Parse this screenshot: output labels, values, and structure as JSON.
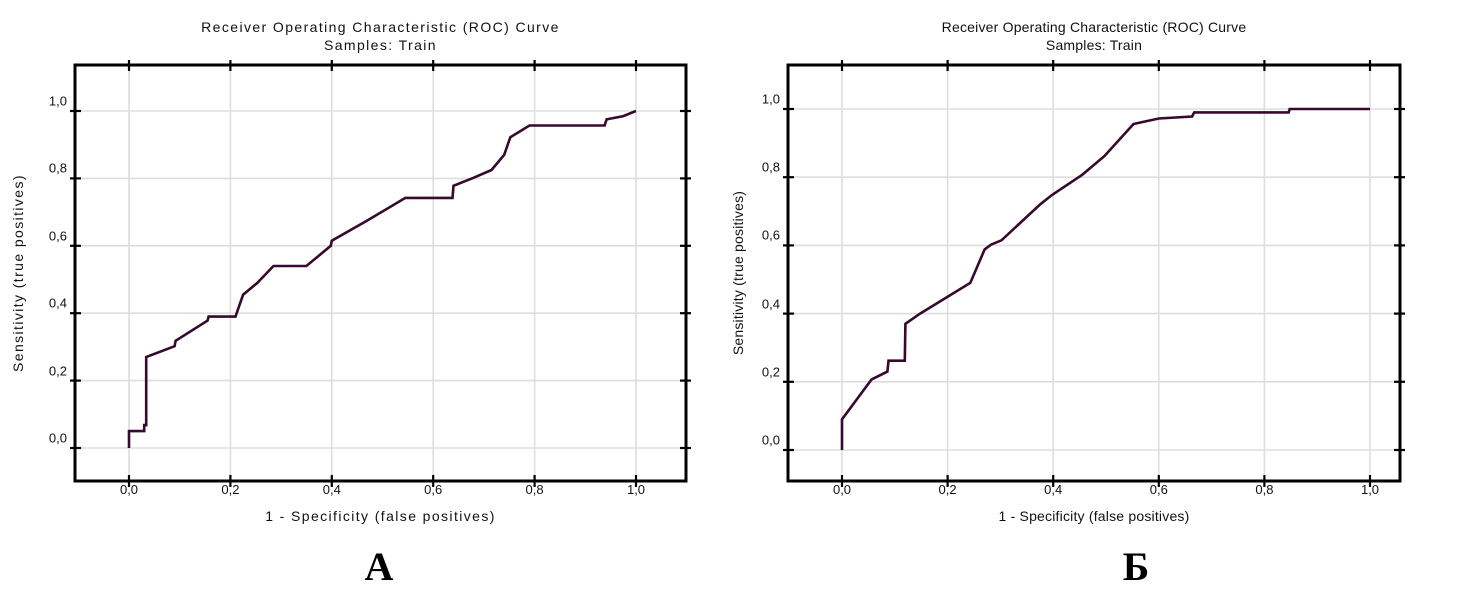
{
  "page": {
    "background": "#ffffff"
  },
  "colors": {
    "curve": "#38092d",
    "grid": "#dedede",
    "frame": "#000000",
    "tick": "#000000",
    "text": "#111111"
  },
  "chart_data": [
    {
      "id": "roc-train-a",
      "type": "line",
      "title": "Receiver Operating Characteristic (ROC) Curve",
      "subtitle": "Samples: Train",
      "xlabel": "1 - Specificity (false positives)",
      "ylabel": "Sensitivity (true positives)",
      "caption": "А",
      "xlim": [
        0,
        1
      ],
      "ylim": [
        0,
        1
      ],
      "grid": true,
      "legend": "none",
      "tick_values": [
        0,
        0.2,
        0.4,
        0.6,
        0.8,
        1.0
      ],
      "xtick_labels": [
        "0,0",
        "0,2",
        "0,4",
        "0,6",
        "0,8",
        "1,0"
      ],
      "ytick_labels": [
        "0,0",
        "0,2",
        "0,4",
        "0,6",
        "0,8",
        "1,0"
      ],
      "series": [
        {
          "name": "ROC curve (Train)",
          "points": [
            [
              0.0,
              0.0
            ],
            [
              0.0,
              0.05
            ],
            [
              0.03,
              0.05
            ],
            [
              0.03,
              0.068
            ],
            [
              0.034,
              0.068
            ],
            [
              0.034,
              0.27
            ],
            [
              0.09,
              0.302
            ],
            [
              0.092,
              0.318
            ],
            [
              0.155,
              0.378
            ],
            [
              0.157,
              0.39
            ],
            [
              0.21,
              0.39
            ],
            [
              0.225,
              0.455
            ],
            [
              0.253,
              0.49
            ],
            [
              0.285,
              0.54
            ],
            [
              0.35,
              0.54
            ],
            [
              0.398,
              0.6
            ],
            [
              0.4,
              0.615
            ],
            [
              0.47,
              0.675
            ],
            [
              0.545,
              0.742
            ],
            [
              0.638,
              0.742
            ],
            [
              0.64,
              0.778
            ],
            [
              0.68,
              0.802
            ],
            [
              0.715,
              0.825
            ],
            [
              0.74,
              0.87
            ],
            [
              0.752,
              0.922
            ],
            [
              0.79,
              0.957
            ],
            [
              0.938,
              0.957
            ],
            [
              0.942,
              0.975
            ],
            [
              0.975,
              0.985
            ],
            [
              1.0,
              1.0
            ]
          ]
        }
      ]
    },
    {
      "id": "roc-train-b",
      "type": "line",
      "title": "Receiver Operating Characteristic (ROC) Curve",
      "subtitle": "Samples: Train",
      "xlabel": "1 - Specificity (false positives)",
      "ylabel": "Sensitivity (true positives)",
      "caption": "Б",
      "xlim": [
        0,
        1
      ],
      "ylim": [
        0,
        1
      ],
      "grid": true,
      "legend": "none",
      "tick_values": [
        0,
        0.2,
        0.4,
        0.6,
        0.8,
        1.0
      ],
      "xtick_labels": [
        "0,0",
        "0,2",
        "0,4",
        "0,6",
        "0,8",
        "1,0"
      ],
      "ytick_labels": [
        "0,0",
        "0,2",
        "0,4",
        "0,6",
        "0,8",
        "1,0"
      ],
      "series": [
        {
          "name": "ROC curve (Train)",
          "points": [
            [
              0.0,
              0.0
            ],
            [
              0.0,
              0.09
            ],
            [
              0.056,
              0.207
            ],
            [
              0.086,
              0.23
            ],
            [
              0.088,
              0.262
            ],
            [
              0.119,
              0.262
            ],
            [
              0.12,
              0.37
            ],
            [
              0.148,
              0.4
            ],
            [
              0.243,
              0.49
            ],
            [
              0.27,
              0.588
            ],
            [
              0.282,
              0.602
            ],
            [
              0.302,
              0.615
            ],
            [
              0.375,
              0.72
            ],
            [
              0.398,
              0.748
            ],
            [
              0.455,
              0.807
            ],
            [
              0.497,
              0.862
            ],
            [
              0.545,
              0.944
            ],
            [
              0.552,
              0.956
            ],
            [
              0.6,
              0.972
            ],
            [
              0.663,
              0.978
            ],
            [
              0.667,
              0.99
            ],
            [
              0.846,
              0.99
            ],
            [
              0.848,
              1.0
            ],
            [
              1.0,
              1.0
            ]
          ]
        }
      ]
    }
  ]
}
